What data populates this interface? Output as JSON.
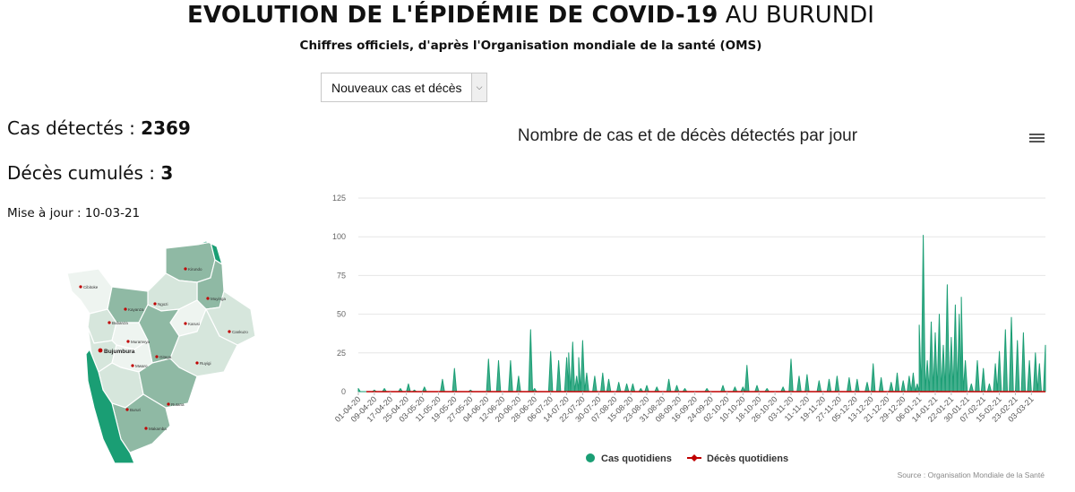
{
  "header": {
    "title_bold": "EVOLUTION DE L'ÉPIDÉMIE DE COVID-19",
    "title_light": "AU BURUNDI",
    "subtitle": "Chiffres officiels, d'après l'Organisation mondiale de la santé (OMS)"
  },
  "selector": {
    "selected": "Nouveaux cas et décès"
  },
  "stats": {
    "cases_label": "Cas détectés : ",
    "cases_value": "2369",
    "deaths_label": "Décès cumulés : ",
    "deaths_value": "3",
    "updated": "Mise à jour : 10-03-21"
  },
  "map": {
    "cities": [
      "Bujumbura",
      "Kirundo",
      "Muyinga",
      "Ngozi",
      "Kayanza",
      "Cibitoke",
      "Bubanza",
      "Muramvya",
      "Gitega",
      "Karusi",
      "Cankuzo",
      "Ruyigi",
      "Mwaro",
      "Bururi",
      "Rutana",
      "Makamba"
    ],
    "colors": {
      "dark": "#1a9e74",
      "mid": "#8fb9a4",
      "light": "#d6e6dc",
      "lighter": "#eef4f0"
    }
  },
  "chart_data": {
    "type": "area",
    "title": "Nombre de cas et de décès détectés par jour",
    "ylim": [
      0,
      125
    ],
    "yticks": [
      0,
      25,
      50,
      75,
      100,
      125
    ],
    "x_tick_labels": [
      "01-04-20",
      "09-04-20",
      "17-04-20",
      "25-04-20",
      "03-05-20",
      "11-05-20",
      "19-05-20",
      "27-05-20",
      "04-06-20",
      "12-06-20",
      "20-06-20",
      "28-06-20",
      "06-07-20",
      "14-07-20",
      "22-07-20",
      "30-07-20",
      "07-08-20",
      "15-08-20",
      "23-08-20",
      "31-08-20",
      "08-09-20",
      "16-09-20",
      "24-09-20",
      "02-10-20",
      "10-10-20",
      "18-10-20",
      "26-10-20",
      "03-11-20",
      "11-11-20",
      "19-11-20",
      "27-11-20",
      "05-12-20",
      "13-12-20",
      "21-12-20",
      "29-12-20",
      "06-01-21",
      "14-01-21",
      "22-01-21",
      "30-01-21",
      "07-02-21",
      "15-02-21",
      "23-02-21",
      "03-03-21"
    ],
    "series": [
      {
        "name": "Cas quotidiens",
        "color": "#1a9e74",
        "points": [
          [
            "01-04-20",
            2
          ],
          [
            "09-04-20",
            1
          ],
          [
            "14-04-20",
            2
          ],
          [
            "22-04-20",
            2
          ],
          [
            "26-04-20",
            5
          ],
          [
            "29-04-20",
            1
          ],
          [
            "04-05-20",
            3
          ],
          [
            "13-05-20",
            8
          ],
          [
            "19-05-20",
            15
          ],
          [
            "27-05-20",
            1
          ],
          [
            "05-06-20",
            21
          ],
          [
            "10-06-20",
            20
          ],
          [
            "16-06-20",
            20
          ],
          [
            "20-06-20",
            10
          ],
          [
            "26-06-20",
            40
          ],
          [
            "28-06-20",
            2
          ],
          [
            "06-07-20",
            26
          ],
          [
            "10-07-20",
            20
          ],
          [
            "14-07-20",
            22
          ],
          [
            "15-07-20",
            25
          ],
          [
            "17-07-20",
            32
          ],
          [
            "19-07-20",
            10
          ],
          [
            "20-07-20",
            22
          ],
          [
            "22-07-20",
            33
          ],
          [
            "24-07-20",
            12
          ],
          [
            "28-07-20",
            10
          ],
          [
            "01-08-20",
            12
          ],
          [
            "04-08-20",
            8
          ],
          [
            "09-08-20",
            6
          ],
          [
            "13-08-20",
            5
          ],
          [
            "16-08-20",
            5
          ],
          [
            "20-08-20",
            2
          ],
          [
            "23-08-20",
            4
          ],
          [
            "28-08-20",
            3
          ],
          [
            "03-09-20",
            8
          ],
          [
            "07-09-20",
            4
          ],
          [
            "11-09-20",
            2
          ],
          [
            "22-09-20",
            2
          ],
          [
            "30-09-20",
            4
          ],
          [
            "06-10-20",
            3
          ],
          [
            "10-10-20",
            3
          ],
          [
            "12-10-20",
            17
          ],
          [
            "17-10-20",
            4
          ],
          [
            "22-10-20",
            2
          ],
          [
            "30-10-20",
            3
          ],
          [
            "03-11-20",
            21
          ],
          [
            "07-11-20",
            10
          ],
          [
            "11-11-20",
            11
          ],
          [
            "17-11-20",
            7
          ],
          [
            "22-11-20",
            8
          ],
          [
            "26-11-20",
            10
          ],
          [
            "02-12-20",
            9
          ],
          [
            "06-12-20",
            8
          ],
          [
            "11-12-20",
            6
          ],
          [
            "14-12-20",
            18
          ],
          [
            "18-12-20",
            9
          ],
          [
            "23-12-20",
            6
          ],
          [
            "26-12-20",
            12
          ],
          [
            "29-12-20",
            7
          ],
          [
            "01-01-21",
            10
          ],
          [
            "03-01-21",
            12
          ],
          [
            "05-01-21",
            5
          ],
          [
            "06-01-21",
            43
          ],
          [
            "08-01-21",
            101
          ],
          [
            "10-01-21",
            20
          ],
          [
            "12-01-21",
            45
          ],
          [
            "14-01-21",
            38
          ],
          [
            "16-01-21",
            50
          ],
          [
            "18-01-21",
            30
          ],
          [
            "20-01-21",
            69
          ],
          [
            "22-01-21",
            35
          ],
          [
            "24-01-21",
            56
          ],
          [
            "26-01-21",
            50
          ],
          [
            "27-01-21",
            61
          ],
          [
            "29-01-21",
            20
          ],
          [
            "01-02-21",
            5
          ],
          [
            "04-02-21",
            20
          ],
          [
            "07-02-21",
            15
          ],
          [
            "10-02-21",
            5
          ],
          [
            "13-02-21",
            18
          ],
          [
            "15-02-21",
            26
          ],
          [
            "18-02-21",
            40
          ],
          [
            "21-02-21",
            48
          ],
          [
            "24-02-21",
            33
          ],
          [
            "27-02-21",
            38
          ],
          [
            "02-03-21",
            20
          ],
          [
            "05-03-21",
            25
          ],
          [
            "07-03-21",
            18
          ],
          [
            "10-03-21",
            30
          ]
        ]
      },
      {
        "name": "Décès quotidiens",
        "color": "#c00000",
        "points": [
          [
            "05-04-20",
            0
          ],
          [
            "10-03-21",
            0
          ]
        ]
      }
    ],
    "legend": {
      "placement": "bottom",
      "entries": [
        "Cas quotidiens",
        "Décès quotidiens"
      ]
    },
    "source": "Source : Organisation Mondiale de la Santé"
  }
}
